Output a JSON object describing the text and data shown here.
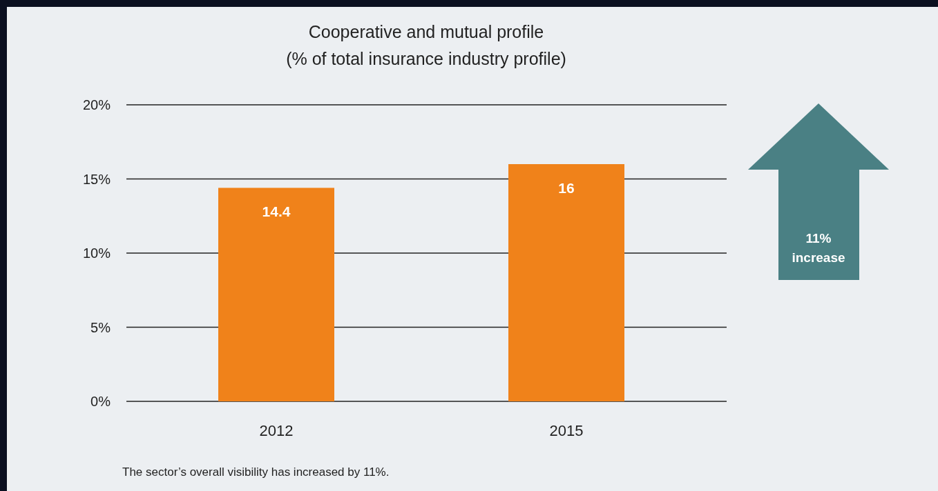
{
  "chart_data": {
    "type": "bar",
    "title": "Cooperative and mutual profile",
    "subtitle": "(% of total insurance industry profile)",
    "categories": [
      "2012",
      "2015"
    ],
    "values": [
      14.4,
      16
    ],
    "color": "#f0821a",
    "ylim": [
      0,
      20
    ],
    "yticks": [
      {
        "value": 0,
        "label": "0%"
      },
      {
        "value": 5,
        "label": "5%"
      },
      {
        "value": 10,
        "label": "10%"
      },
      {
        "value": 15,
        "label": "15%"
      },
      {
        "value": 20,
        "label": "20%"
      }
    ],
    "grid": "y",
    "data_labels": true,
    "annotations": [
      "11% increase",
      "The sector’s overall visibility has increased by 11%."
    ]
  }
}
